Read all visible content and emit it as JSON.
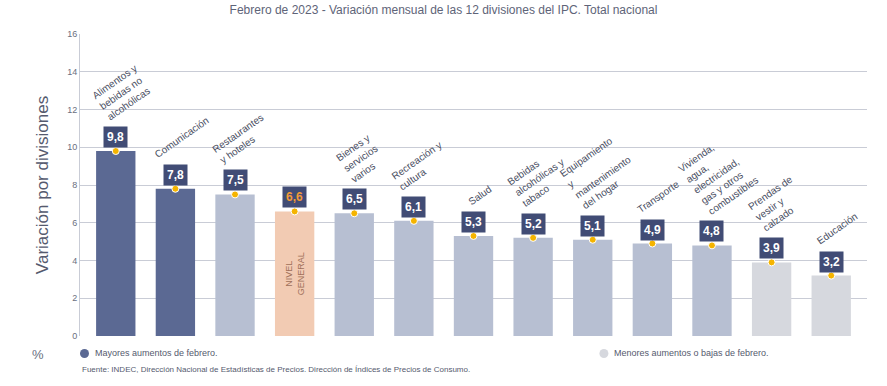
{
  "chart_data": {
    "type": "bar",
    "title": "Febrero de 2023 - Variación mensual de las 12 divisiones del IPC. Total nacional",
    "y_label": "Variación por divisiones",
    "unit_label": "%",
    "categories": [
      "Alimentos y bebidas no alcohólicas",
      "Comunicación",
      "Restaurantes y hoteles",
      "NIVEL GENERAL",
      "Bienes y servicios varios",
      "Recreación y cultura",
      "Salud",
      "Bebidas alcohólicas y tabaco",
      "Equipamiento y mantenimiento del hogar",
      "Transporte",
      "Vivienda, agua, electricidad, gas y otros combustibles",
      "Prendas de vestir y calzado",
      "Educación"
    ],
    "values": [
      9.8,
      7.8,
      7.5,
      6.6,
      6.5,
      6.1,
      5.3,
      5.2,
      5.1,
      4.9,
      4.8,
      3.9,
      3.2
    ],
    "value_labels": [
      "9,8",
      "7,8",
      "7,5",
      "6,6",
      "6,5",
      "6,1",
      "5,3",
      "5,2",
      "5,1",
      "4,9",
      "4,8",
      "3,9",
      "3,2"
    ],
    "colors": [
      "#5b6993",
      "#5b6993",
      "#b7bfd2",
      "#f2cbb3",
      "#b7bfd2",
      "#b7bfd2",
      "#b7bfd2",
      "#b7bfd2",
      "#b7bfd2",
      "#b7bfd2",
      "#b7bfd2",
      "#d6d8de",
      "#d6d8de"
    ],
    "ylim": [
      0,
      16
    ],
    "yticks": [
      0,
      2,
      4,
      6,
      8,
      10,
      12,
      14,
      16
    ],
    "grid": true,
    "data_labels": true,
    "tick_labels": "y",
    "legend_notes": [
      {
        "text": "Mayores aumentos de febrero.",
        "color": "#5b6993"
      },
      {
        "text": "Menores aumentos o bajas de febrero.",
        "color": "#d6d8de"
      }
    ],
    "source": "Fuente: INDEC, Dirección Nacional de Estadísticas de Precios. Dirección de Índices de Precios de Consumo."
  }
}
